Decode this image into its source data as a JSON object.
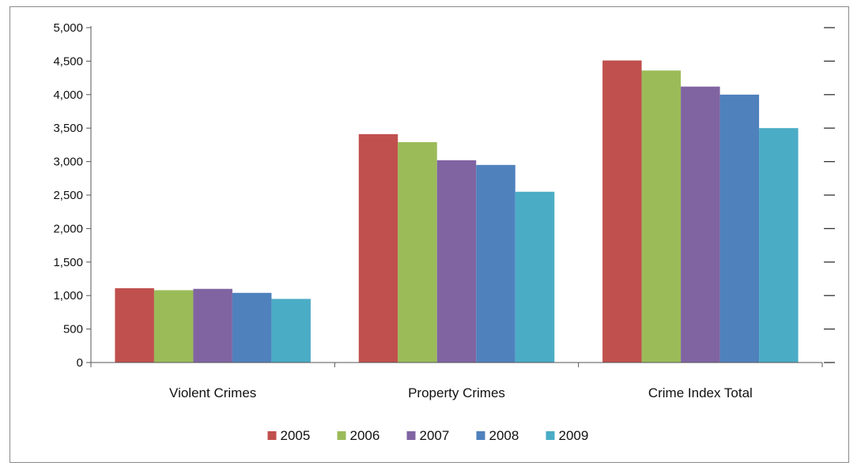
{
  "chart_data": {
    "type": "bar",
    "title": "",
    "xlabel": "",
    "ylabel": "",
    "categories": [
      "Violent Crimes",
      "Property Crimes",
      "Crime Index Total"
    ],
    "series": [
      {
        "name": "2005",
        "color": "#c0504d",
        "values": [
          1110,
          3410,
          4510
        ]
      },
      {
        "name": "2006",
        "color": "#9bbb59",
        "values": [
          1080,
          3290,
          4360
        ]
      },
      {
        "name": "2007",
        "color": "#8064a2",
        "values": [
          1100,
          3020,
          4120
        ]
      },
      {
        "name": "2008",
        "color": "#4f81bd",
        "values": [
          1040,
          2950,
          4000
        ]
      },
      {
        "name": "2009",
        "color": "#4bacc6",
        "values": [
          950,
          2550,
          3500
        ]
      }
    ],
    "ylim": [
      0,
      5000
    ],
    "yticks": [
      0,
      500,
      1000,
      1500,
      2000,
      2500,
      3000,
      3500,
      4000,
      4500,
      5000
    ],
    "ytick_labels": [
      "0",
      "500",
      "1,000",
      "1,500",
      "2,000",
      "2,500",
      "3,000",
      "3,500",
      "4,000",
      "4,500",
      "5,000"
    ],
    "grid": false,
    "legend_position": "bottom"
  }
}
